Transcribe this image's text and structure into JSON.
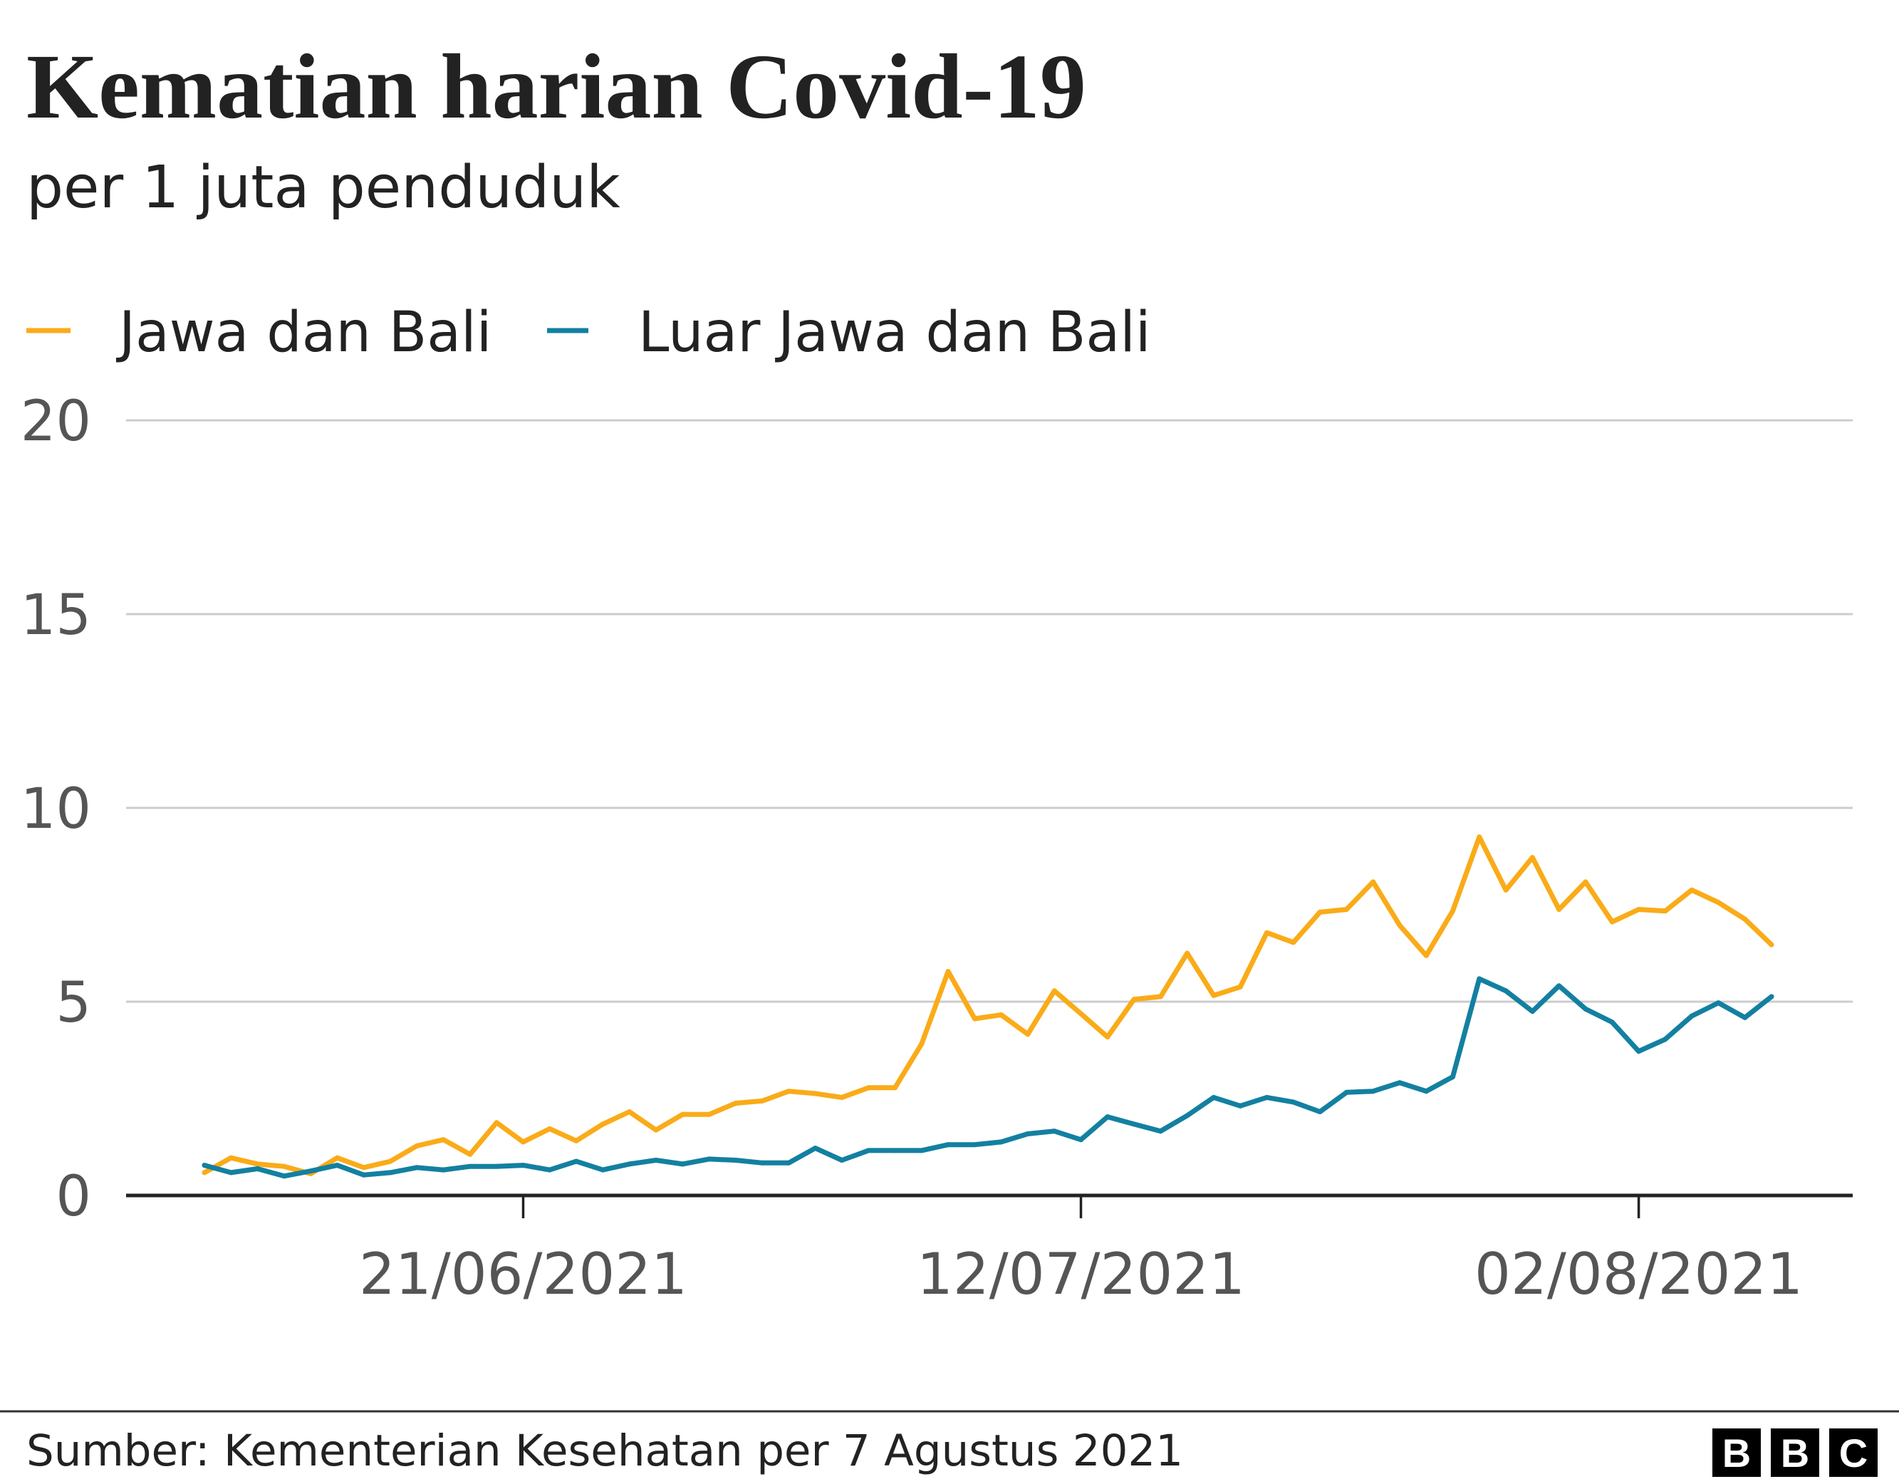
{
  "chart_data": {
    "type": "line",
    "title": "Kematian harian Covid-19",
    "subtitle": "per 1 juta penduduk",
    "ylim": [
      0,
      20
    ],
    "yticks": [
      0,
      5,
      10,
      15,
      20
    ],
    "xticks": [
      "21/06/2021",
      "12/07/2021",
      "02/08/2021"
    ],
    "grid": true,
    "legend_position": "top-left",
    "x": [
      "09/06/2021",
      "10/06/2021",
      "11/06/2021",
      "12/06/2021",
      "13/06/2021",
      "14/06/2021",
      "15/06/2021",
      "16/06/2021",
      "17/06/2021",
      "18/06/2021",
      "19/06/2021",
      "20/06/2021",
      "21/06/2021",
      "22/06/2021",
      "23/06/2021",
      "24/06/2021",
      "25/06/2021",
      "26/06/2021",
      "27/06/2021",
      "28/06/2021",
      "29/06/2021",
      "30/06/2021",
      "01/07/2021",
      "02/07/2021",
      "03/07/2021",
      "04/07/2021",
      "05/07/2021",
      "06/07/2021",
      "07/07/2021",
      "08/07/2021",
      "09/07/2021",
      "10/07/2021",
      "11/07/2021",
      "12/07/2021",
      "13/07/2021",
      "14/07/2021",
      "15/07/2021",
      "16/07/2021",
      "17/07/2021",
      "18/07/2021",
      "19/07/2021",
      "20/07/2021",
      "21/07/2021",
      "22/07/2021",
      "23/07/2021",
      "24/07/2021",
      "25/07/2021",
      "26/07/2021",
      "27/07/2021",
      "28/07/2021",
      "29/07/2021",
      "30/07/2021",
      "31/07/2021",
      "01/08/2021",
      "02/08/2021",
      "03/08/2021",
      "04/08/2021",
      "05/08/2021",
      "06/08/2021",
      "07/08/2021"
    ],
    "series": [
      {
        "name": "Jawa dan Bali",
        "color": "#FAAB18",
        "values": [
          0.59,
          0.97,
          0.81,
          0.75,
          0.56,
          0.97,
          0.72,
          0.88,
          1.28,
          1.44,
          1.06,
          1.88,
          1.38,
          1.72,
          1.41,
          1.84,
          2.16,
          1.69,
          2.09,
          2.09,
          2.38,
          2.44,
          2.69,
          2.63,
          2.53,
          2.78,
          2.78,
          3.91,
          5.78,
          4.56,
          4.66,
          4.16,
          5.28,
          4.69,
          4.09,
          5.06,
          5.13,
          6.25,
          5.16,
          5.38,
          6.78,
          6.53,
          7.31,
          7.38,
          8.09,
          6.97,
          6.19,
          7.34,
          9.25,
          7.88,
          8.72,
          7.38,
          8.09,
          7.06,
          7.38,
          7.34,
          7.88,
          7.56,
          7.13,
          6.47
        ]
      },
      {
        "name": "Luar Jawa dan Bali",
        "color": "#1380A1",
        "values": [
          0.78,
          0.59,
          0.69,
          0.5,
          0.63,
          0.78,
          0.53,
          0.59,
          0.72,
          0.66,
          0.75,
          0.75,
          0.78,
          0.66,
          0.88,
          0.66,
          0.81,
          0.91,
          0.81,
          0.94,
          0.91,
          0.84,
          0.84,
          1.22,
          0.91,
          1.16,
          1.16,
          1.16,
          1.31,
          1.31,
          1.38,
          1.59,
          1.66,
          1.44,
          2.03,
          1.84,
          1.66,
          2.06,
          2.53,
          2.31,
          2.53,
          2.41,
          2.16,
          2.66,
          2.69,
          2.91,
          2.69,
          3.06,
          5.59,
          5.28,
          4.75,
          5.41,
          4.81,
          4.47,
          3.72,
          4.03,
          4.63,
          4.97,
          4.59,
          5.13
        ]
      }
    ]
  },
  "source": "Sumber: Kementerian Kesehatan per 7 Agustus 2021",
  "logo": {
    "letters": [
      "B",
      "B",
      "C"
    ]
  }
}
